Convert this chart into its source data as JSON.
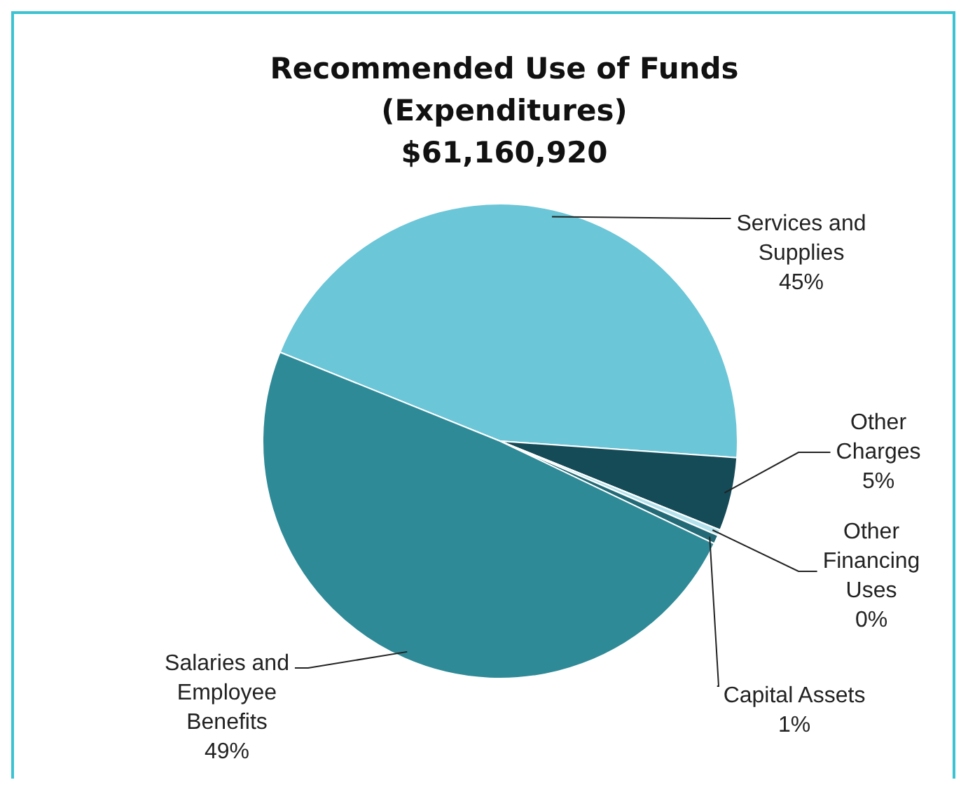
{
  "chart_data": {
    "type": "pie",
    "title": "Recommended Use of Funds (Expenditures)",
    "subtitle": "$61,160,920",
    "categories": [
      "Services and Supplies",
      "Other Charges",
      "Other Financing Uses",
      "Capital Assets",
      "Salaries and Employee Benefits"
    ],
    "values": [
      45,
      5,
      0.4,
      0.6,
      49
    ],
    "value_labels": [
      "45%",
      "5%",
      "0%",
      "1%",
      "49%"
    ],
    "colors": [
      "#6bc6d8",
      "#154a57",
      "#b3e2ec",
      "#236a76",
      "#2e8a97"
    ],
    "legend": false
  }
}
